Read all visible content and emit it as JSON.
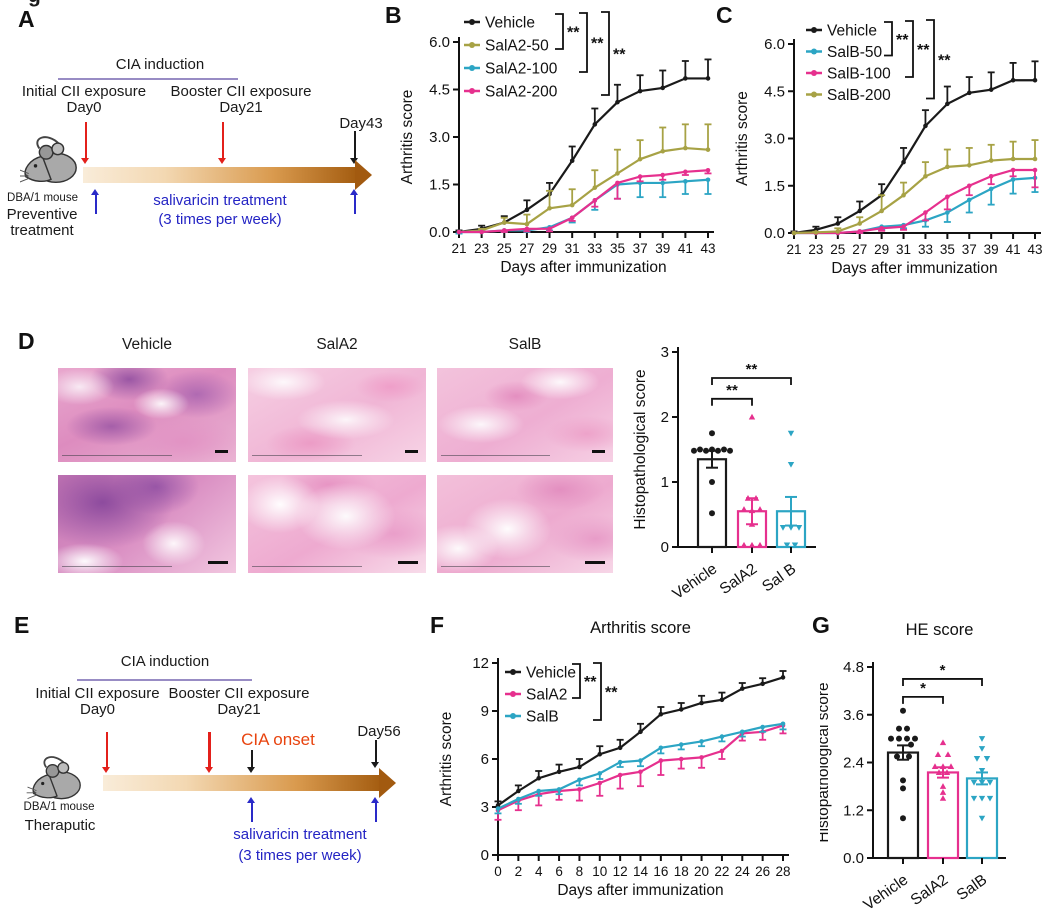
{
  "figure": {
    "partial_top_text": "g"
  },
  "panel_a": {
    "label": "A",
    "cia": "CIA induction",
    "initial": "Initial CII exposure",
    "day0": "Day0",
    "booster": "Booster CII exposure",
    "day21": "Day21",
    "end_day": "Day43",
    "treat1": "salivaricin treatment",
    "treat2": "(3 times per week)",
    "mouse": "DBA/1 mouse",
    "group1": "Preventive",
    "group2": "treatment"
  },
  "panel_e": {
    "label": "E",
    "cia": "CIA induction",
    "initial": "Initial CII exposure",
    "day0": "Day0",
    "booster": "Booster CII exposure",
    "day21": "Day21",
    "onset": "CIA onset",
    "end_day": "Day56",
    "treat1": "salivaricin treatment",
    "treat2": "(3 times per week)",
    "mouse": "DBA/1 mouse",
    "group1": "Theraputic"
  },
  "panel_b": {
    "label": "B"
  },
  "panel_c": {
    "label": "C"
  },
  "panel_d": {
    "label": "D",
    "titles": {
      "vehicle": "Vehicle",
      "sala2": "SalA2",
      "salb": "SalB"
    }
  },
  "panel_f": {
    "label": "F"
  },
  "panel_g": {
    "label": "G"
  },
  "chart_data": [
    {
      "id": "B",
      "type": "line",
      "title": "",
      "ylabel": "Arthritis score",
      "xlabel": "Days after immunization",
      "ylim": [
        0,
        6
      ],
      "yticks": [
        0,
        1.5,
        3,
        4.5,
        6
      ],
      "ytick_labels": [
        "0.0",
        "1.5",
        "3.0",
        "4.5",
        "6.0"
      ],
      "x": [
        21,
        23,
        25,
        27,
        29,
        31,
        33,
        35,
        37,
        39,
        41,
        43
      ],
      "series": [
        {
          "name": "Vehicle",
          "color": "#1a1a1a",
          "err_dir": "up",
          "values": [
            0,
            0.1,
            0.3,
            0.7,
            1.2,
            2.25,
            3.4,
            4.1,
            4.45,
            4.55,
            4.85,
            4.85
          ],
          "errors": [
            0.05,
            0.1,
            0.2,
            0.3,
            0.35,
            0.45,
            0.5,
            0.55,
            0.5,
            0.55,
            0.55,
            0.6
          ]
        },
        {
          "name": "SalA2-50",
          "color": "#a7a245",
          "err_dir": "up",
          "values": [
            0,
            0.05,
            0.3,
            0.25,
            0.75,
            0.85,
            1.4,
            1.85,
            2.3,
            2.55,
            2.65,
            2.6
          ],
          "errors": [
            0,
            0.05,
            0.15,
            0.3,
            0.55,
            0.5,
            0.55,
            0.75,
            0.6,
            0.75,
            0.75,
            0.8
          ]
        },
        {
          "name": "SalA2-100",
          "color": "#2ca5c4",
          "err_dir": "down",
          "values": [
            0,
            0,
            0.05,
            0.05,
            0.15,
            0.45,
            1,
            1.5,
            1.55,
            1.55,
            1.6,
            1.65
          ],
          "errors": [
            0.05,
            0,
            0.05,
            0.05,
            0.1,
            0.15,
            0.3,
            0.45,
            0.45,
            0.45,
            0.4,
            0.45
          ]
        },
        {
          "name": "SalA2-200",
          "color": "#e6308e",
          "err_dir": "down",
          "values": [
            0,
            0,
            0.05,
            0.1,
            0.1,
            0.45,
            1,
            1.55,
            1.75,
            1.8,
            1.9,
            1.95
          ],
          "errors": [
            0,
            0,
            0.05,
            0.08,
            0.08,
            0.1,
            0.2,
            0.5,
            0.15,
            0.15,
            0.1,
            0.1
          ]
        }
      ],
      "significance": [
        {
          "pair": "Vehicle vs SalA2-50",
          "label": "**"
        },
        {
          "pair": "Vehicle vs SalA2-100",
          "label": "**"
        },
        {
          "pair": "Vehicle vs SalA2-200",
          "label": "**"
        }
      ]
    },
    {
      "id": "C",
      "type": "line",
      "title": "",
      "ylabel": "Arthritis score",
      "xlabel": "Days after immunization",
      "ylim": [
        0,
        6
      ],
      "yticks": [
        0,
        1.5,
        3,
        4.5,
        6
      ],
      "ytick_labels": [
        "0.0",
        "1.5",
        "3.0",
        "4.5",
        "6.0"
      ],
      "x": [
        21,
        23,
        25,
        27,
        29,
        31,
        33,
        35,
        37,
        39,
        41,
        43
      ],
      "series": [
        {
          "name": "Vehicle",
          "color": "#1a1a1a",
          "err_dir": "up",
          "values": [
            0,
            0.1,
            0.3,
            0.7,
            1.2,
            2.25,
            3.4,
            4.1,
            4.45,
            4.55,
            4.85,
            4.85
          ],
          "errors": [
            0.05,
            0.1,
            0.2,
            0.3,
            0.35,
            0.45,
            0.5,
            0.55,
            0.5,
            0.55,
            0.55,
            0.6
          ]
        },
        {
          "name": "SalB-50",
          "color": "#2ca5c4",
          "err_dir": "down",
          "values": [
            0,
            0,
            0,
            0.05,
            0.2,
            0.25,
            0.4,
            0.65,
            1.05,
            1.4,
            1.7,
            1.75
          ],
          "errors": [
            0,
            0,
            0,
            0.05,
            0.1,
            0.1,
            0.2,
            0.3,
            0.4,
            0.5,
            0.45,
            0.45
          ]
        },
        {
          "name": "SalB-100",
          "color": "#e6308e",
          "err_dir": "down",
          "values": [
            0,
            0,
            0,
            0.05,
            0.15,
            0.2,
            0.65,
            1.15,
            1.5,
            1.8,
            2.0,
            2.0
          ],
          "errors": [
            0,
            0,
            0,
            0.05,
            0.08,
            0.1,
            0.25,
            0.4,
            0.3,
            0.25,
            0.2,
            0.55
          ]
        },
        {
          "name": "SalB-200",
          "color": "#a7a245",
          "err_dir": "up",
          "values": [
            0,
            0.02,
            0.05,
            0.3,
            0.7,
            1.2,
            1.8,
            2.1,
            2.15,
            2.3,
            2.35,
            2.35
          ],
          "errors": [
            0,
            0.02,
            0.1,
            0.2,
            0.5,
            0.4,
            0.45,
            0.55,
            0.55,
            0.5,
            0.55,
            0.6
          ]
        }
      ],
      "significance": [
        {
          "pair": "Vehicle vs SalB-50",
          "label": "**"
        },
        {
          "pair": "Vehicle vs SalB-100",
          "label": "**"
        },
        {
          "pair": "Vehicle vs SalB-200",
          "label": "**"
        }
      ]
    },
    {
      "id": "D",
      "type": "bar-scatter",
      "title": "",
      "ylabel": "Histopathological score",
      "ylim": [
        0,
        3
      ],
      "yticks": [
        0,
        1,
        2,
        3
      ],
      "ytick_labels": [
        "0",
        "1",
        "2",
        "3"
      ],
      "categories": [
        "Vehicle",
        "SalA2",
        "Sal B"
      ],
      "bars": [
        {
          "name": "Vehicle",
          "color": "#1a1a1a",
          "marker": "circle",
          "mean": 1.35,
          "sem": 0.13,
          "points": [
            [
              0,
              1.75
            ],
            [
              -18,
              1.48
            ],
            [
              -12,
              1.5
            ],
            [
              -6,
              1.48
            ],
            [
              0,
              1.5
            ],
            [
              6,
              1.48
            ],
            [
              12,
              1.5
            ],
            [
              18,
              1.48
            ],
            [
              0,
              1.0
            ],
            [
              0,
              0.52
            ]
          ]
        },
        {
          "name": "SalA2",
          "color": "#e6308e",
          "marker": "triangle-up",
          "mean": 0.55,
          "sem": 0.2,
          "points": [
            [
              0,
              2.0
            ],
            [
              -4,
              0.75
            ],
            [
              4,
              0.75
            ],
            [
              -8,
              0.58
            ],
            [
              0,
              0.56
            ],
            [
              8,
              0.58
            ],
            [
              0,
              0.35
            ],
            [
              -8,
              0.03
            ],
            [
              0,
              0.03
            ],
            [
              8,
              0.03
            ]
          ]
        },
        {
          "name": "SalB",
          "color": "#2ca5c4",
          "marker": "triangle-down",
          "mean": 0.55,
          "sem": 0.22,
          "points": [
            [
              0,
              1.75
            ],
            [
              0,
              1.27
            ],
            [
              -8,
              0.3
            ],
            [
              0,
              0.3
            ],
            [
              8,
              0.3
            ],
            [
              -4,
              0.03
            ],
            [
              4,
              0.03
            ]
          ]
        }
      ],
      "significance": [
        {
          "from": 0,
          "to": 1,
          "label": "**",
          "y": 2.28
        },
        {
          "from": 0,
          "to": 2,
          "label": "**",
          "y": 2.6
        }
      ]
    },
    {
      "id": "F",
      "type": "line",
      "title": "Arthritis score",
      "ylabel": "Arthritis score",
      "xlabel": "Days after immunization",
      "ylim": [
        0,
        12
      ],
      "yticks": [
        0,
        3,
        6,
        9,
        12
      ],
      "ytick_labels": [
        "0",
        "3",
        "6",
        "9",
        "12"
      ],
      "x": [
        0,
        2,
        4,
        6,
        8,
        10,
        12,
        14,
        16,
        18,
        20,
        22,
        24,
        26,
        28
      ],
      "series": [
        {
          "name": "Vehicle",
          "color": "#1a1a1a",
          "err_dir": "up",
          "values": [
            3.1,
            4.0,
            4.8,
            5.2,
            5.5,
            6.3,
            6.7,
            7.7,
            8.8,
            9.1,
            9.5,
            9.7,
            10.4,
            10.7,
            11.1
          ],
          "errors": [
            0.25,
            0.35,
            0.45,
            0.45,
            0.5,
            0.5,
            0.5,
            0.5,
            0.45,
            0.4,
            0.45,
            0.45,
            0.35,
            0.35,
            0.4
          ]
        },
        {
          "name": "SalA2",
          "color": "#e6308e",
          "err_dir": "down",
          "values": [
            2.8,
            3.4,
            3.8,
            4.0,
            4.1,
            4.5,
            5.0,
            5.2,
            5.9,
            6.0,
            6.1,
            6.5,
            7.6,
            7.7,
            8.1
          ],
          "errors": [
            0.6,
            0.6,
            0.7,
            0.55,
            0.7,
            0.8,
            0.85,
            0.9,
            0.9,
            0.6,
            0.65,
            0.5,
            0.45,
            0.5,
            0.5
          ]
        },
        {
          "name": "SalB",
          "color": "#2ca5c4",
          "err_dir": "down",
          "values": [
            2.9,
            3.5,
            4.0,
            4.1,
            4.7,
            5.1,
            5.8,
            5.9,
            6.7,
            6.9,
            7.1,
            7.4,
            7.7,
            8.0,
            8.2
          ],
          "errors": [
            0.3,
            0.3,
            0.3,
            0.3,
            0.35,
            0.35,
            0.3,
            0.35,
            0.35,
            0.3,
            0.3,
            0.3,
            0.3,
            0.3,
            0.35
          ]
        }
      ],
      "significance": [
        {
          "pair": "Vehicle vs SalA2",
          "label": "**"
        },
        {
          "pair": "Vehicle vs SalB",
          "label": "**"
        }
      ]
    },
    {
      "id": "G",
      "type": "bar-scatter",
      "title": "HE score",
      "ylabel": "Histopathological score",
      "ylim": [
        0,
        4.8
      ],
      "yticks": [
        0,
        1.2,
        2.4,
        3.6,
        4.8
      ],
      "ytick_labels": [
        "0.0",
        "1.2",
        "2.4",
        "3.6",
        "4.8"
      ],
      "categories": [
        "Vehicle",
        "SalA2",
        "SalB"
      ],
      "bars": [
        {
          "name": "Vehicle",
          "color": "#1a1a1a",
          "marker": "circle",
          "mean": 2.65,
          "sem": 0.18,
          "points": [
            [
              0,
              3.7
            ],
            [
              -4,
              3.25
            ],
            [
              4,
              3.25
            ],
            [
              -12,
              3.0
            ],
            [
              -4,
              3.0
            ],
            [
              4,
              3.0
            ],
            [
              12,
              3.0
            ],
            [
              8,
              2.85
            ],
            [
              -6,
              2.55
            ],
            [
              6,
              2.55
            ],
            [
              0,
              1.95
            ],
            [
              0,
              1.75
            ],
            [
              0,
              1.0
            ]
          ]
        },
        {
          "name": "SalA2",
          "color": "#e6308e",
          "marker": "triangle-up",
          "mean": 2.15,
          "sem": 0.13,
          "points": [
            [
              0,
              2.9
            ],
            [
              -5,
              2.6
            ],
            [
              5,
              2.6
            ],
            [
              -8,
              2.3
            ],
            [
              0,
              2.3
            ],
            [
              8,
              2.3
            ],
            [
              -4,
              2.15
            ],
            [
              4,
              2.15
            ],
            [
              0,
              1.8
            ],
            [
              0,
              1.65
            ],
            [
              0,
              1.5
            ]
          ]
        },
        {
          "name": "SalB",
          "color": "#2ca5c4",
          "marker": "triangle-down",
          "mean": 2.0,
          "sem": 0.15,
          "points": [
            [
              0,
              3.0
            ],
            [
              0,
              2.75
            ],
            [
              -5,
              2.5
            ],
            [
              5,
              2.5
            ],
            [
              0,
              2.2
            ],
            [
              -8,
              1.9
            ],
            [
              0,
              1.9
            ],
            [
              8,
              1.9
            ],
            [
              -8,
              1.5
            ],
            [
              0,
              1.5
            ],
            [
              8,
              1.5
            ],
            [
              0,
              1.0
            ]
          ]
        }
      ],
      "significance": [
        {
          "from": 0,
          "to": 1,
          "label": "*",
          "y": 4.05
        },
        {
          "from": 0,
          "to": 2,
          "label": "*",
          "y": 4.5
        }
      ]
    }
  ]
}
